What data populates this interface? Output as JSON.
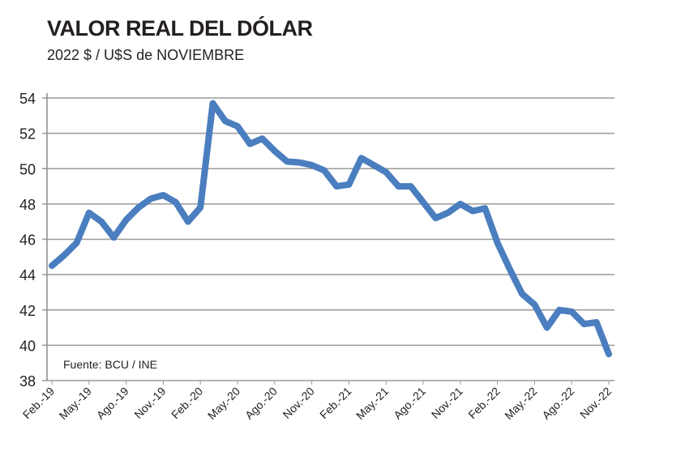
{
  "chart_data": {
    "type": "line",
    "title": "VALOR REAL DEL DÓLAR",
    "subtitle": "2022 $ / U$S de NOVIEMBRE",
    "source": "Fuente: BCU / INE",
    "xlabel": "",
    "ylabel": "",
    "ylim": [
      38,
      54
    ],
    "yticks": [
      38,
      40,
      42,
      44,
      46,
      48,
      50,
      52,
      54
    ],
    "grid": true,
    "color": "#4a7ebf",
    "x_tick_labels": [
      "Feb.-19",
      "May.-19",
      "Ago.-19",
      "Nov.-19",
      "Feb.-20",
      "May.-20",
      "Ago.-20",
      "Nov.-20",
      "Feb.-21",
      "May.-21",
      "Ago.-21",
      "Nov.-21",
      "Feb.-22",
      "May.-22",
      "Ago.-22",
      "Nov.-22"
    ],
    "x_start": "2019-02",
    "x_end": "2022-11",
    "series": [
      {
        "values": [
          44.5,
          45.1,
          45.8,
          47.5,
          47.0,
          46.1,
          47.1,
          47.8,
          48.3,
          48.5,
          48.1,
          47.0,
          47.8,
          53.7,
          52.7,
          52.4,
          51.4,
          51.7,
          51.0,
          50.4,
          50.35,
          50.2,
          49.9,
          49.0,
          49.1,
          50.6,
          50.2,
          49.8,
          49.0,
          49.0,
          48.1,
          47.2,
          47.5,
          48.0,
          47.6,
          47.75,
          45.8,
          44.3,
          42.9,
          42.3,
          41.0,
          42.0,
          41.9,
          41.2,
          41.3,
          39.5
        ]
      }
    ]
  }
}
